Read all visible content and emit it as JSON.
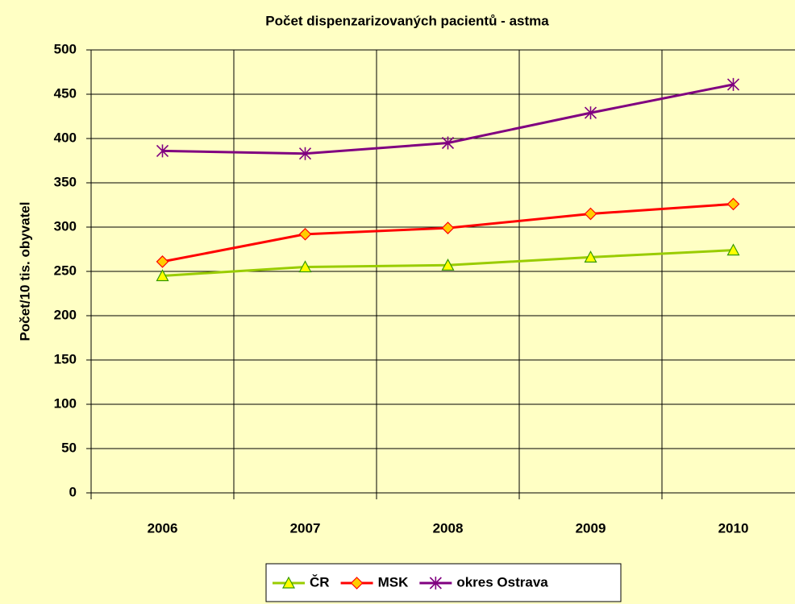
{
  "chart_data": {
    "type": "line",
    "title": "Počet dispenzarizovaných pacientů - astma",
    "y_label": "Počet/10 tis. obyvatel",
    "categories": [
      "2006",
      "2007",
      "2008",
      "2009",
      "2010"
    ],
    "series": [
      {
        "name": "ČR",
        "color": "#99cc00",
        "marker": "triangle",
        "marker_fill": "#ffff00",
        "values": [
          245,
          255,
          257,
          266,
          274
        ]
      },
      {
        "name": "MSK",
        "color": "#ff0000",
        "marker": "diamond",
        "marker_fill": "#ffcc00",
        "values": [
          261,
          292,
          299,
          315,
          326
        ]
      },
      {
        "name": "okres Ostrava",
        "color": "#800080",
        "marker": "star",
        "marker_fill": "#800080",
        "values": [
          386,
          383,
          395,
          429,
          461
        ]
      }
    ],
    "ylim": [
      0,
      500
    ],
    "yticks": [
      0,
      50,
      100,
      150,
      200,
      250,
      300,
      350,
      400,
      450,
      500
    ],
    "grid": true,
    "legend": "bottom"
  }
}
